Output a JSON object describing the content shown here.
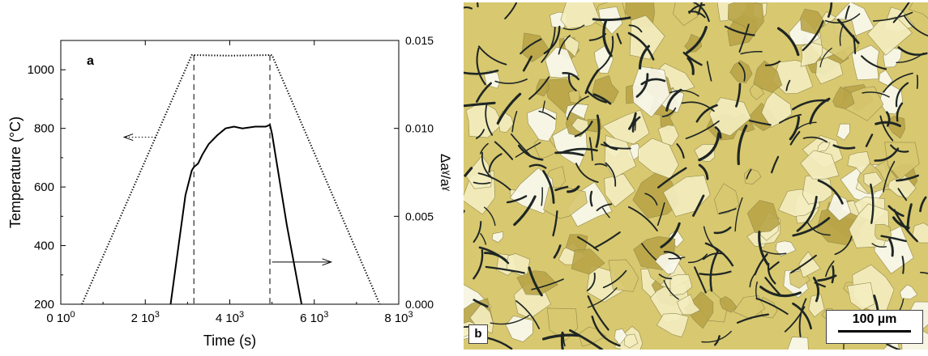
{
  "chart_data": {
    "type": "line",
    "panel_label": "a",
    "xlabel": "Time (s)",
    "ylabel_left": "Temperature (°C)",
    "ylabel_right": "Δaˠ/aˠ",
    "xlim": [
      0,
      8000
    ],
    "ylim_left": [
      200,
      1100
    ],
    "ylim_right": [
      0.0,
      0.015
    ],
    "x_ticks": [
      {
        "value": 0,
        "mantissa": "0",
        "exp": "0"
      },
      {
        "value": 2000,
        "mantissa": "2",
        "exp": "3"
      },
      {
        "value": 4000,
        "mantissa": "4",
        "exp": "3"
      },
      {
        "value": 6000,
        "mantissa": "6",
        "exp": "3"
      },
      {
        "value": 8000,
        "mantissa": "8",
        "exp": "3"
      }
    ],
    "y_left_ticks": [
      "200",
      "400",
      "600",
      "800",
      "1000"
    ],
    "y_left_tick_values": [
      200,
      400,
      600,
      800,
      1000
    ],
    "y_right_ticks": [
      "0.000",
      "0.005",
      "0.010",
      "0.015"
    ],
    "y_right_tick_values": [
      0.0,
      0.005,
      0.01,
      0.015
    ],
    "series": [
      {
        "axis": "left",
        "style": "dotted",
        "x": [
          500,
          3100,
          3200,
          4000,
          4900,
          5000,
          7550
        ],
        "y": [
          200,
          1050,
          1050,
          1048,
          1050,
          1050,
          200
        ]
      },
      {
        "axis": "right",
        "style": "solid",
        "x": [
          2600,
          2780,
          2950,
          3100,
          3150,
          3250,
          3350,
          3500,
          3700,
          3900,
          4100,
          4300,
          4600,
          4850,
          4950,
          5000,
          5350,
          5700
        ],
        "y": [
          0.0,
          0.0032,
          0.0062,
          0.0076,
          0.0078,
          0.008,
          0.0085,
          0.0091,
          0.0096,
          0.01,
          0.0101,
          0.01,
          0.0101,
          0.0101,
          0.0102,
          0.0097,
          0.0045,
          0.0
        ]
      }
    ],
    "vlines": [
      3150,
      4950
    ],
    "arrows": [
      {
        "axis": "left",
        "from_x": 2250,
        "to_x": 1500,
        "y": 770,
        "style": "dotted"
      },
      {
        "axis": "right",
        "from_x": 5000,
        "to_x": 6400,
        "y": 0.0024,
        "style": "solid"
      }
    ]
  },
  "micrograph": {
    "panel_label": "b",
    "scale_bar_label": "100 µm",
    "palette": {
      "background": "#d8c870",
      "light_grain": "#f4eec0",
      "white_grain": "#fbfaf0",
      "dark_grain": "#b9a548",
      "needle": "#1e2624"
    }
  }
}
